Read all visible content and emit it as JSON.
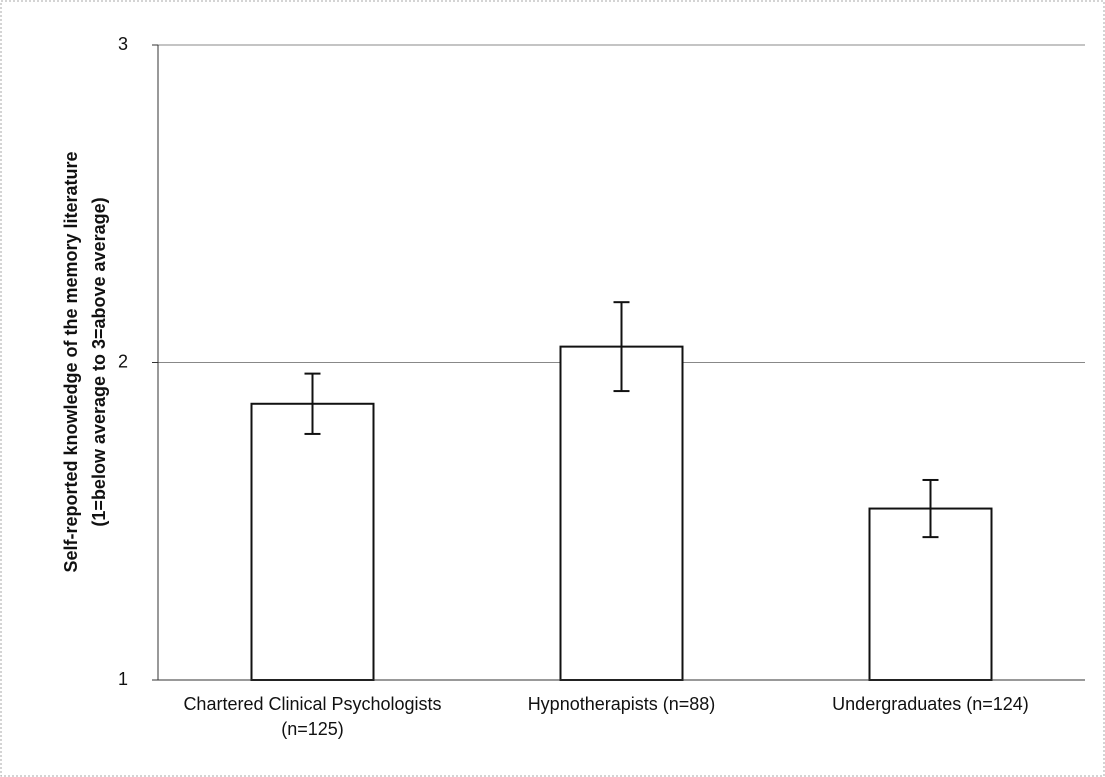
{
  "chart_data": {
    "type": "bar",
    "ylabel": [
      "Self-reported knowledge of the memory literature",
      "(1=below average to 3=above average)"
    ],
    "categories": [
      "Chartered Clinical Psychologists (n=125)",
      "Hypnotherapists (n=88)",
      "Undergraduates (n=124)"
    ],
    "values": [
      1.87,
      2.05,
      1.54
    ],
    "errors": [
      0.095,
      0.14,
      0.09
    ],
    "color": "#ffffff",
    "ylim": [
      1,
      3
    ],
    "yticks": [
      1,
      2,
      3
    ],
    "grid": true
  }
}
